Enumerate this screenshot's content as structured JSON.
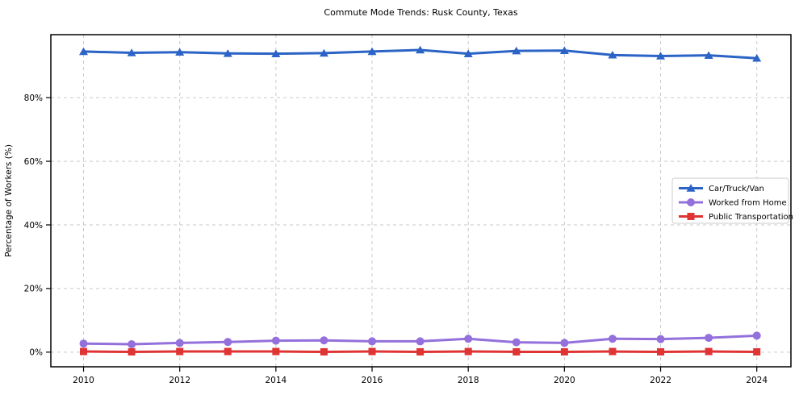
{
  "chart_data": {
    "type": "line",
    "title": "Commute Mode Trends: Rusk County, Texas",
    "xlabel": "",
    "ylabel": "Percentage of Workers (%)",
    "x": [
      2010,
      2011,
      2012,
      2013,
      2014,
      2015,
      2016,
      2017,
      2018,
      2019,
      2020,
      2021,
      2022,
      2023,
      2024
    ],
    "series": [
      {
        "name": "Car/Truck/Van",
        "color": "#2b63c6",
        "marker": "triangle-up",
        "values": [
          94.5,
          94.1,
          94.3,
          93.9,
          93.8,
          94.0,
          94.5,
          95.0,
          93.8,
          94.7,
          94.8,
          93.4,
          93.1,
          93.3,
          92.4
        ]
      },
      {
        "name": "Worked from Home",
        "color": "#9370db",
        "marker": "circle",
        "values": [
          2.7,
          2.5,
          2.9,
          3.2,
          3.6,
          3.7,
          3.4,
          3.4,
          4.2,
          3.1,
          2.9,
          4.2,
          4.1,
          4.5,
          5.2
        ]
      },
      {
        "name": "Public Transportation",
        "color": "#e03333",
        "marker": "square",
        "values": [
          0.2,
          0.1,
          0.2,
          0.2,
          0.2,
          0.1,
          0.2,
          0.1,
          0.2,
          0.1,
          0.1,
          0.2,
          0.1,
          0.2,
          0.1
        ]
      }
    ],
    "xticks": [
      2010,
      2012,
      2014,
      2016,
      2018,
      2020,
      2022,
      2024
    ],
    "xtick_labels": [
      "2010",
      "2012",
      "2014",
      "2016",
      "2018",
      "2020",
      "2022",
      "2024"
    ],
    "yticks": [
      0,
      20,
      40,
      60,
      80
    ],
    "ytick_labels": [
      "0%",
      "20%",
      "40%",
      "60%",
      "80%"
    ],
    "xlim": [
      2009.32,
      2024.71
    ],
    "ylim": [
      -4.6,
      99.8
    ],
    "grid": "dashed",
    "grid_color": "#c9c9c9",
    "legend_position": "center-right",
    "legend_border_color": "#cccccc",
    "spine_color": "#000000",
    "background_color": "#ffffff"
  }
}
